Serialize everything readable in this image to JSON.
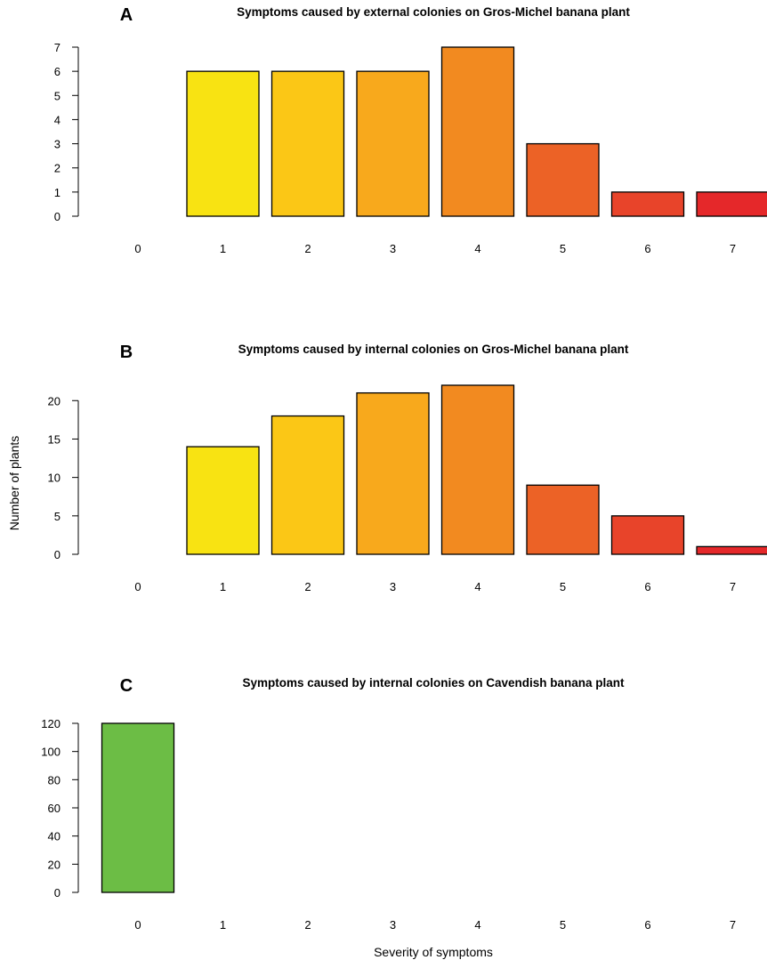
{
  "figure": {
    "ylabel": "Number of plants",
    "xlabel": "Severity of symptoms"
  },
  "chart_data": [
    {
      "type": "bar",
      "panel_letter": "A",
      "title": "Symptoms caused by external colonies on Gros-Michel banana plant",
      "categories": [
        "0",
        "1",
        "2",
        "3",
        "4",
        "5",
        "6",
        "7"
      ],
      "values": [
        0,
        6,
        6,
        6,
        7,
        3,
        1,
        1
      ],
      "colors": [
        "#ffffff",
        "#f8e312",
        "#fbc716",
        "#f8a91c",
        "#f28a20",
        "#ec6226",
        "#e8442a",
        "#e5282a"
      ],
      "yticks": [
        0,
        1,
        2,
        3,
        4,
        5,
        6,
        7
      ],
      "ylim": [
        0,
        7
      ],
      "grid": false,
      "legend": "none"
    },
    {
      "type": "bar",
      "panel_letter": "B",
      "title": "Symptoms caused by internal colonies on Gros-Michel banana plant",
      "categories": [
        "0",
        "1",
        "2",
        "3",
        "4",
        "5",
        "6",
        "7"
      ],
      "values": [
        0,
        14,
        18,
        21,
        22,
        9,
        5,
        1
      ],
      "colors": [
        "#ffffff",
        "#f8e312",
        "#fbc716",
        "#f8a91c",
        "#f28a20",
        "#ec6226",
        "#e8442a",
        "#e5282a"
      ],
      "yticks": [
        0,
        5,
        10,
        15,
        20
      ],
      "ylim": [
        0,
        22
      ],
      "grid": false,
      "legend": "none"
    },
    {
      "type": "bar",
      "panel_letter": "C",
      "title": "Symptoms caused by internal colonies on Cavendish banana plant",
      "categories": [
        "0",
        "1",
        "2",
        "3",
        "4",
        "5",
        "6",
        "7"
      ],
      "values": [
        120,
        0,
        0,
        0,
        0,
        0,
        0,
        0
      ],
      "colors": [
        "#6cbd45",
        "#6cbd45",
        "#6cbd45",
        "#6cbd45",
        "#6cbd45",
        "#6cbd45",
        "#6cbd45",
        "#6cbd45"
      ],
      "yticks": [
        0,
        20,
        40,
        60,
        80,
        100,
        120
      ],
      "ylim": [
        0,
        120
      ],
      "grid": false,
      "legend": "none"
    }
  ]
}
